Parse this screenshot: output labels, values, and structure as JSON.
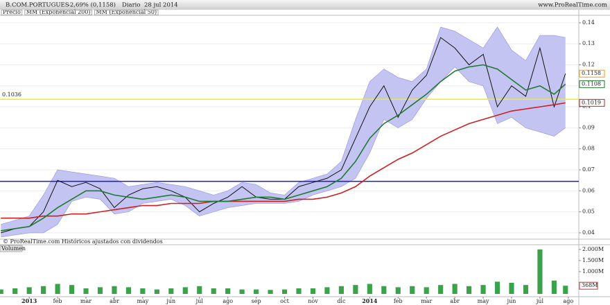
{
  "header": {
    "title": "B.COM.PORTUGUES",
    "change": "-2,69% (0,1158)",
    "period": "Diario",
    "date": "28 jul 2014",
    "site": "www.ProRealTime.com"
  },
  "chart_data": [
    {
      "type": "line",
      "annotation": "© ProRealTime.com  Históricos ajustados con dividendos",
      "x": [
        -1,
        -0.5,
        0,
        0.5,
        1,
        1.5,
        2,
        2.5,
        3,
        3.5,
        4,
        4.5,
        5,
        5.5,
        6,
        6.5,
        7,
        7.5,
        8,
        8.5,
        9,
        9.5,
        10,
        10.5,
        11,
        11.5,
        12,
        12.5,
        13,
        13.5,
        14,
        14.5,
        15,
        15.5,
        16,
        16.5,
        17,
        17.5,
        18,
        18.5,
        18.9
      ],
      "xlim": [
        -1.03,
        19.37
      ],
      "ylim": [
        0.037,
        0.1436
      ],
      "yticks": [
        0.04,
        0.05,
        0.06,
        0.07,
        0.08,
        0.09,
        0.1,
        0.11,
        0.12,
        0.13,
        0.14
      ],
      "grid": true,
      "series": [
        {
          "name": "Precio",
          "color": "#111111",
          "label_color": "#ff9900",
          "values": [
            0.04,
            0.042,
            0.043,
            0.05,
            0.065,
            0.062,
            0.064,
            0.061,
            0.052,
            0.058,
            0.061,
            0.062,
            0.06,
            0.057,
            0.05,
            0.054,
            0.057,
            0.062,
            0.057,
            0.056,
            0.056,
            0.062,
            0.064,
            0.066,
            0.07,
            0.085,
            0.1,
            0.11,
            0.095,
            0.108,
            0.115,
            0.133,
            0.128,
            0.12,
            0.125,
            0.1,
            0.11,
            0.105,
            0.128,
            0.1,
            0.1158
          ]
        },
        {
          "name": "MM (Exponencial 200)",
          "color": "#cc1f1f",
          "label_color": "#cc1f1f",
          "values": [
            0.047,
            0.047,
            0.047,
            0.048,
            0.048,
            0.049,
            0.049,
            0.05,
            0.051,
            0.052,
            0.053,
            0.053,
            0.054,
            0.054,
            0.054,
            0.055,
            0.055,
            0.055,
            0.055,
            0.055,
            0.055,
            0.056,
            0.056,
            0.057,
            0.059,
            0.062,
            0.067,
            0.071,
            0.075,
            0.078,
            0.082,
            0.086,
            0.089,
            0.092,
            0.094,
            0.096,
            0.098,
            0.099,
            0.1,
            0.101,
            0.1019
          ]
        },
        {
          "name": "MM (Exponencial 50)",
          "color": "#1e7a2e",
          "label_color": "#1e7a2e",
          "values": [
            0.041,
            0.042,
            0.043,
            0.047,
            0.052,
            0.056,
            0.06,
            0.06,
            0.058,
            0.057,
            0.056,
            0.057,
            0.058,
            0.057,
            0.055,
            0.055,
            0.055,
            0.056,
            0.057,
            0.057,
            0.056,
            0.058,
            0.06,
            0.062,
            0.066,
            0.074,
            0.085,
            0.092,
            0.096,
            0.101,
            0.106,
            0.112,
            0.117,
            0.119,
            0.12,
            0.118,
            0.113,
            0.108,
            0.11,
            0.106,
            0.1108
          ]
        }
      ],
      "bands": {
        "color": "#c4c4f2",
        "upper": [
          0.044,
          0.046,
          0.048,
          0.058,
          0.07,
          0.069,
          0.068,
          0.067,
          0.066,
          0.062,
          0.063,
          0.064,
          0.063,
          0.062,
          0.06,
          0.058,
          0.06,
          0.064,
          0.063,
          0.059,
          0.058,
          0.064,
          0.066,
          0.068,
          0.074,
          0.094,
          0.112,
          0.118,
          0.114,
          0.112,
          0.118,
          0.138,
          0.136,
          0.132,
          0.128,
          0.138,
          0.127,
          0.122,
          0.134,
          0.134,
          0.133
        ],
        "lower": [
          0.038,
          0.039,
          0.04,
          0.04,
          0.044,
          0.055,
          0.057,
          0.056,
          0.049,
          0.05,
          0.054,
          0.055,
          0.056,
          0.053,
          0.048,
          0.05,
          0.052,
          0.053,
          0.054,
          0.054,
          0.054,
          0.055,
          0.058,
          0.06,
          0.062,
          0.066,
          0.078,
          0.094,
          0.09,
          0.094,
          0.104,
          0.112,
          0.119,
          0.112,
          0.11,
          0.092,
          0.095,
          0.09,
          0.088,
          0.086,
          0.09
        ]
      },
      "hlines": [
        {
          "value": 0.1036,
          "color": "#f2f200",
          "labeled": true
        },
        {
          "value": 0.0645,
          "color": "#1a1acc",
          "labeled": false
        }
      ]
    },
    {
      "type": "bar",
      "title": "Volumen",
      "color": "#3aa34a",
      "current_label": "368M",
      "x": [
        -1,
        -0.5,
        0,
        0.5,
        1,
        1.5,
        2,
        2.5,
        3,
        3.5,
        4,
        4.5,
        5,
        5.5,
        6,
        6.5,
        7,
        7.5,
        8,
        8.5,
        9,
        9.5,
        10,
        10.5,
        11,
        11.5,
        12,
        12.5,
        13,
        13.5,
        14,
        14.5,
        15,
        15.5,
        16,
        16.5,
        17,
        17.5,
        18,
        18.5,
        18.9
      ],
      "values": [
        200000,
        250000,
        300000,
        350000,
        450000,
        400000,
        250000,
        300000,
        350000,
        300000,
        250000,
        200000,
        250000,
        300000,
        350000,
        250000,
        250000,
        200000,
        200000,
        180000,
        200000,
        250000,
        250000,
        300000,
        350000,
        400000,
        450000,
        350000,
        300000,
        350000,
        300000,
        400000,
        450000,
        350000,
        400000,
        550000,
        500000,
        400000,
        2000000,
        600000,
        368000
      ],
      "xlim": [
        -1.03,
        19.37
      ],
      "xticks": [
        {
          "value": 0,
          "label": "2013"
        },
        {
          "value": 1,
          "label": "feb"
        },
        {
          "value": 2,
          "label": "mar"
        },
        {
          "value": 3,
          "label": "abr"
        },
        {
          "value": 4,
          "label": "may"
        },
        {
          "value": 5,
          "label": "jun"
        },
        {
          "value": 6,
          "label": "jul"
        },
        {
          "value": 7,
          "label": "ago"
        },
        {
          "value": 8,
          "label": "sep"
        },
        {
          "value": 9,
          "label": "oct"
        },
        {
          "value": 10,
          "label": "nov"
        },
        {
          "value": 11,
          "label": "dic"
        },
        {
          "value": 12,
          "label": "2014"
        },
        {
          "value": 13,
          "label": "feb"
        },
        {
          "value": 14,
          "label": "mar"
        },
        {
          "value": 15,
          "label": "abr"
        },
        {
          "value": 16,
          "label": "may"
        },
        {
          "value": 17,
          "label": "jun"
        },
        {
          "value": 18,
          "label": "jul"
        },
        {
          "value": 19,
          "label": "ago"
        }
      ],
      "ylim": [
        0,
        2150000
      ],
      "yticks": [
        {
          "value": 1000000,
          "label": "1.000M"
        },
        {
          "value": 1500000,
          "label": "1.500M"
        },
        {
          "value": 2000000,
          "label": "2.000M"
        }
      ]
    }
  ]
}
